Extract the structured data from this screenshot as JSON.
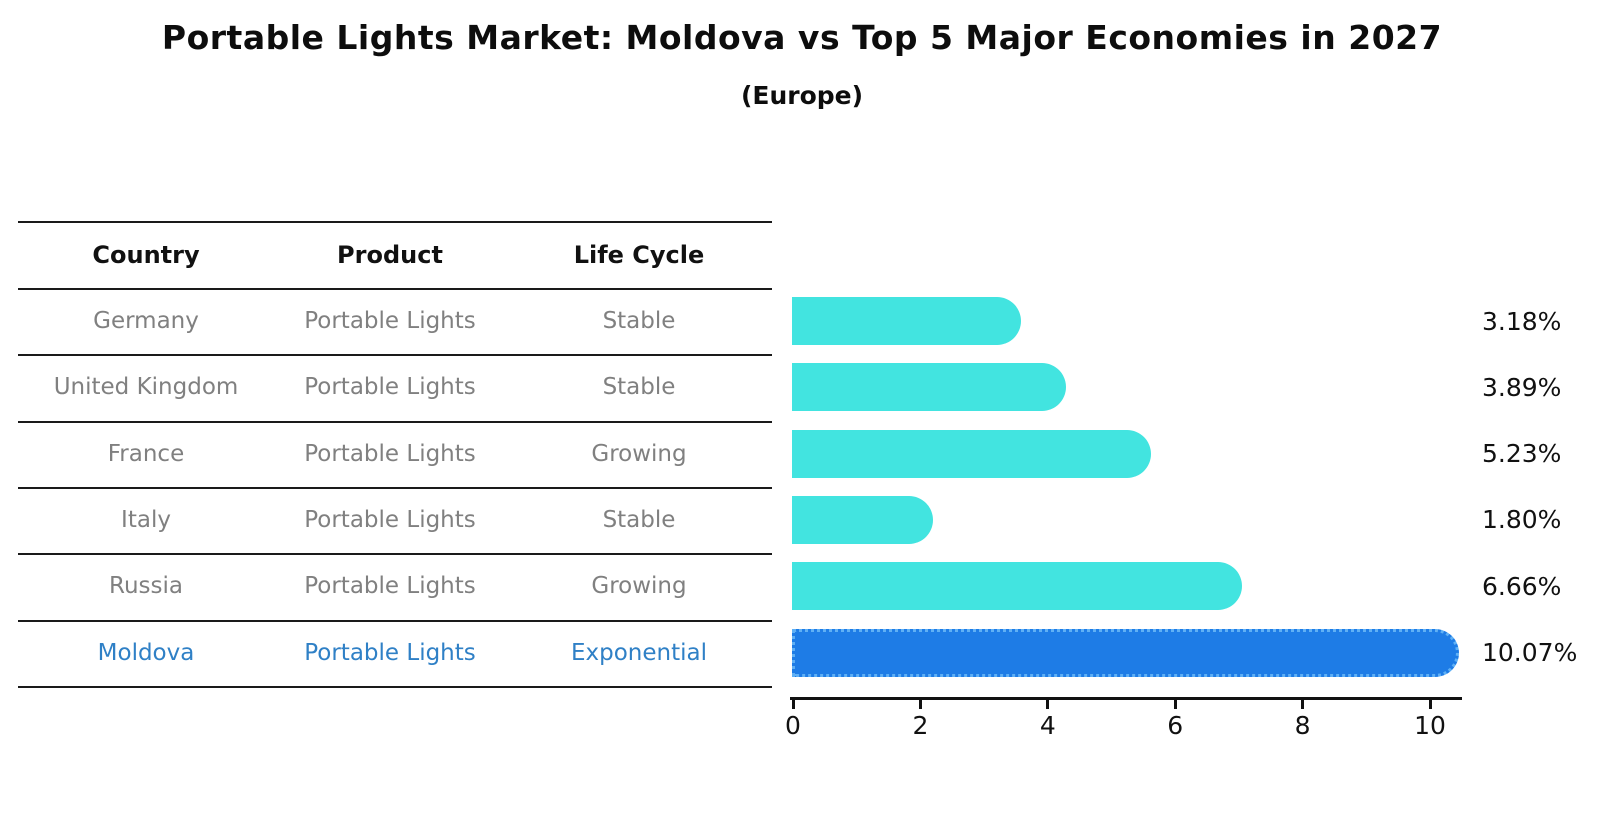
{
  "title": "Portable Lights Market: Moldova vs Top 5 Major Economies in 2027",
  "subtitle": "(Europe)",
  "table": {
    "columns": [
      "Country",
      "Product",
      "Life Cycle"
    ],
    "rows": [
      {
        "country": "Germany",
        "product": "Portable Lights",
        "life_cycle": "Stable",
        "highlight": false
      },
      {
        "country": "United Kingdom",
        "product": "Portable Lights",
        "life_cycle": "Stable",
        "highlight": false
      },
      {
        "country": "France",
        "product": "Portable Lights",
        "life_cycle": "Growing",
        "highlight": false
      },
      {
        "country": "Italy",
        "product": "Portable Lights",
        "life_cycle": "Stable",
        "highlight": false
      },
      {
        "country": "Russia",
        "product": "Portable Lights",
        "life_cycle": "Growing",
        "highlight": false
      },
      {
        "country": "Moldova",
        "product": "Portable Lights",
        "life_cycle": "Exponential",
        "highlight": true
      }
    ]
  },
  "chart_data": {
    "type": "bar",
    "orientation": "horizontal",
    "title": "Portable Lights Market: Moldova vs Top 5 Major Economies in 2027 (Europe)",
    "categories": [
      "Germany",
      "United Kingdom",
      "France",
      "Italy",
      "Russia",
      "Moldova"
    ],
    "values": [
      3.18,
      3.89,
      5.23,
      1.8,
      6.66,
      10.07
    ],
    "value_labels": [
      "3.18%",
      "3.89%",
      "5.23%",
      "1.80%",
      "6.66%",
      "10.07%"
    ],
    "xlabel": "",
    "ylabel": "",
    "xlim": [
      0,
      10.5
    ],
    "x_ticks": [
      0,
      2,
      4,
      6,
      8,
      10
    ],
    "x_tick_labels": [
      "0",
      "2",
      "4",
      "6",
      "8",
      "10"
    ],
    "grid": false,
    "legend": false,
    "bar_color": "#42e4e0",
    "highlight_index": 5,
    "highlight_bar_color": "#1e7ce6",
    "highlight_border_color": "#5fb0f5",
    "highlight_border_style": "dotted",
    "highlight_text_color": "#2f80c6"
  }
}
